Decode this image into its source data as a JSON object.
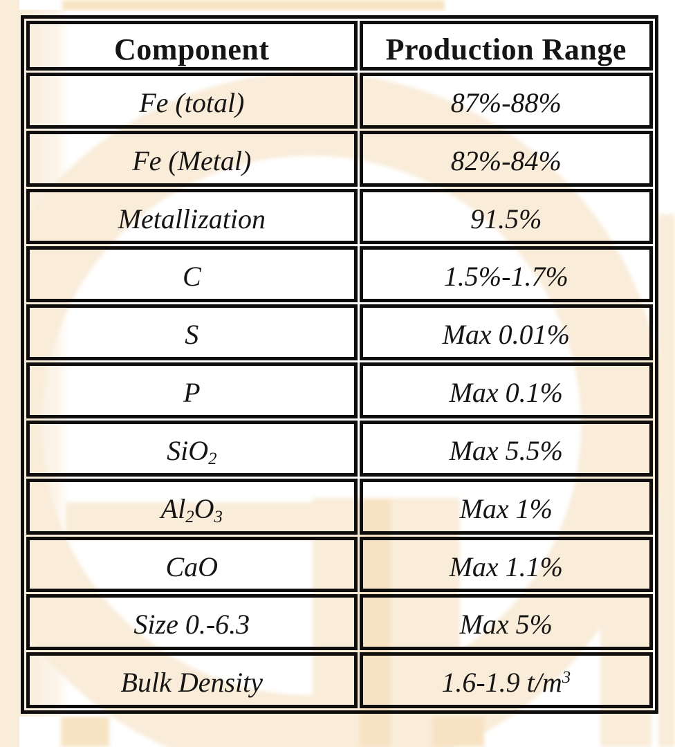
{
  "page": {
    "background_color": "#ffffff",
    "watermark_colors": {
      "light_peach": "#f9ecd9",
      "accent_peach": "#f7e3c3",
      "margin_cream": "#f9edda"
    }
  },
  "table": {
    "border_color": "#0f0e0c",
    "text_color": "#171513",
    "header": [
      "Component",
      "Production Range"
    ],
    "rows": [
      {
        "component": [
          {
            "t": "Fe (total)"
          }
        ],
        "range": [
          {
            "t": "87%-88%"
          }
        ]
      },
      {
        "component": [
          {
            "t": "Fe (Metal)"
          }
        ],
        "range": [
          {
            "t": "82%-84%"
          }
        ]
      },
      {
        "component": [
          {
            "t": "Metallization"
          }
        ],
        "range": [
          {
            "t": "91.5%"
          }
        ]
      },
      {
        "component": [
          {
            "t": "C"
          }
        ],
        "range": [
          {
            "t": "1.5%-1.7%"
          }
        ]
      },
      {
        "component": [
          {
            "t": "S"
          }
        ],
        "range": [
          {
            "t": "Max 0.01%"
          }
        ]
      },
      {
        "component": [
          {
            "t": "P"
          }
        ],
        "range": [
          {
            "t": "Max 0.1%"
          }
        ]
      },
      {
        "component": [
          {
            "t": "SiO"
          },
          {
            "t": "2",
            "sub": true
          }
        ],
        "range": [
          {
            "t": "Max 5.5%"
          }
        ]
      },
      {
        "component": [
          {
            "t": "Al"
          },
          {
            "t": "2",
            "sub": true
          },
          {
            "t": "O"
          },
          {
            "t": "3",
            "sub": true
          }
        ],
        "range": [
          {
            "t": "Max 1%"
          }
        ]
      },
      {
        "component": [
          {
            "t": "CaO"
          }
        ],
        "range": [
          {
            "t": "Max 1.1%"
          }
        ]
      },
      {
        "component": [
          {
            "t": "Size 0.-6.3"
          }
        ],
        "range": [
          {
            "t": "Max 5%"
          }
        ]
      },
      {
        "component": [
          {
            "t": "Bulk Density"
          }
        ],
        "range": [
          {
            "t": "1.6-1.9 t/m"
          },
          {
            "t": "3",
            "sup": true
          }
        ]
      }
    ]
  }
}
